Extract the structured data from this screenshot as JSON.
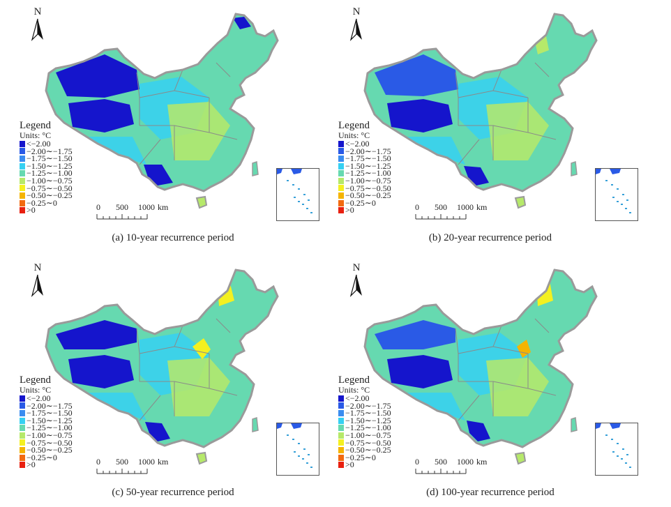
{
  "north_label": "N",
  "legend": {
    "title": "Legend",
    "units": "Units: °C",
    "classes": [
      {
        "label": "<−2.00",
        "color": "#1515cc"
      },
      {
        "label": "−2.00∼−1.75",
        "color": "#2a5ae6"
      },
      {
        "label": "−1.75∼−1.50",
        "color": "#3a8cf0"
      },
      {
        "label": "−1.50∼−1.25",
        "color": "#36d0f2"
      },
      {
        "label": "−1.25∼−1.00",
        "color": "#66d9b0"
      },
      {
        "label": "−1.00∼−0.75",
        "color": "#b6e96a"
      },
      {
        "label": "−0.75∼−0.50",
        "color": "#f4f020"
      },
      {
        "label": "−0.50∼−0.25",
        "color": "#f5b400"
      },
      {
        "label": "−0.25∼0",
        "color": "#f26a10"
      },
      {
        "label": ">0",
        "color": "#e82010"
      }
    ]
  },
  "scale": {
    "ticks": [
      "0",
      "500",
      "1000"
    ],
    "unit": "km"
  },
  "panels": [
    {
      "caption": "(a) 10-year recurrence period"
    },
    {
      "caption": "(b) 20-year recurrence period"
    },
    {
      "caption": "(c) 50-year recurrence period"
    },
    {
      "caption": "(d) 100-year recurrence period"
    }
  ]
}
